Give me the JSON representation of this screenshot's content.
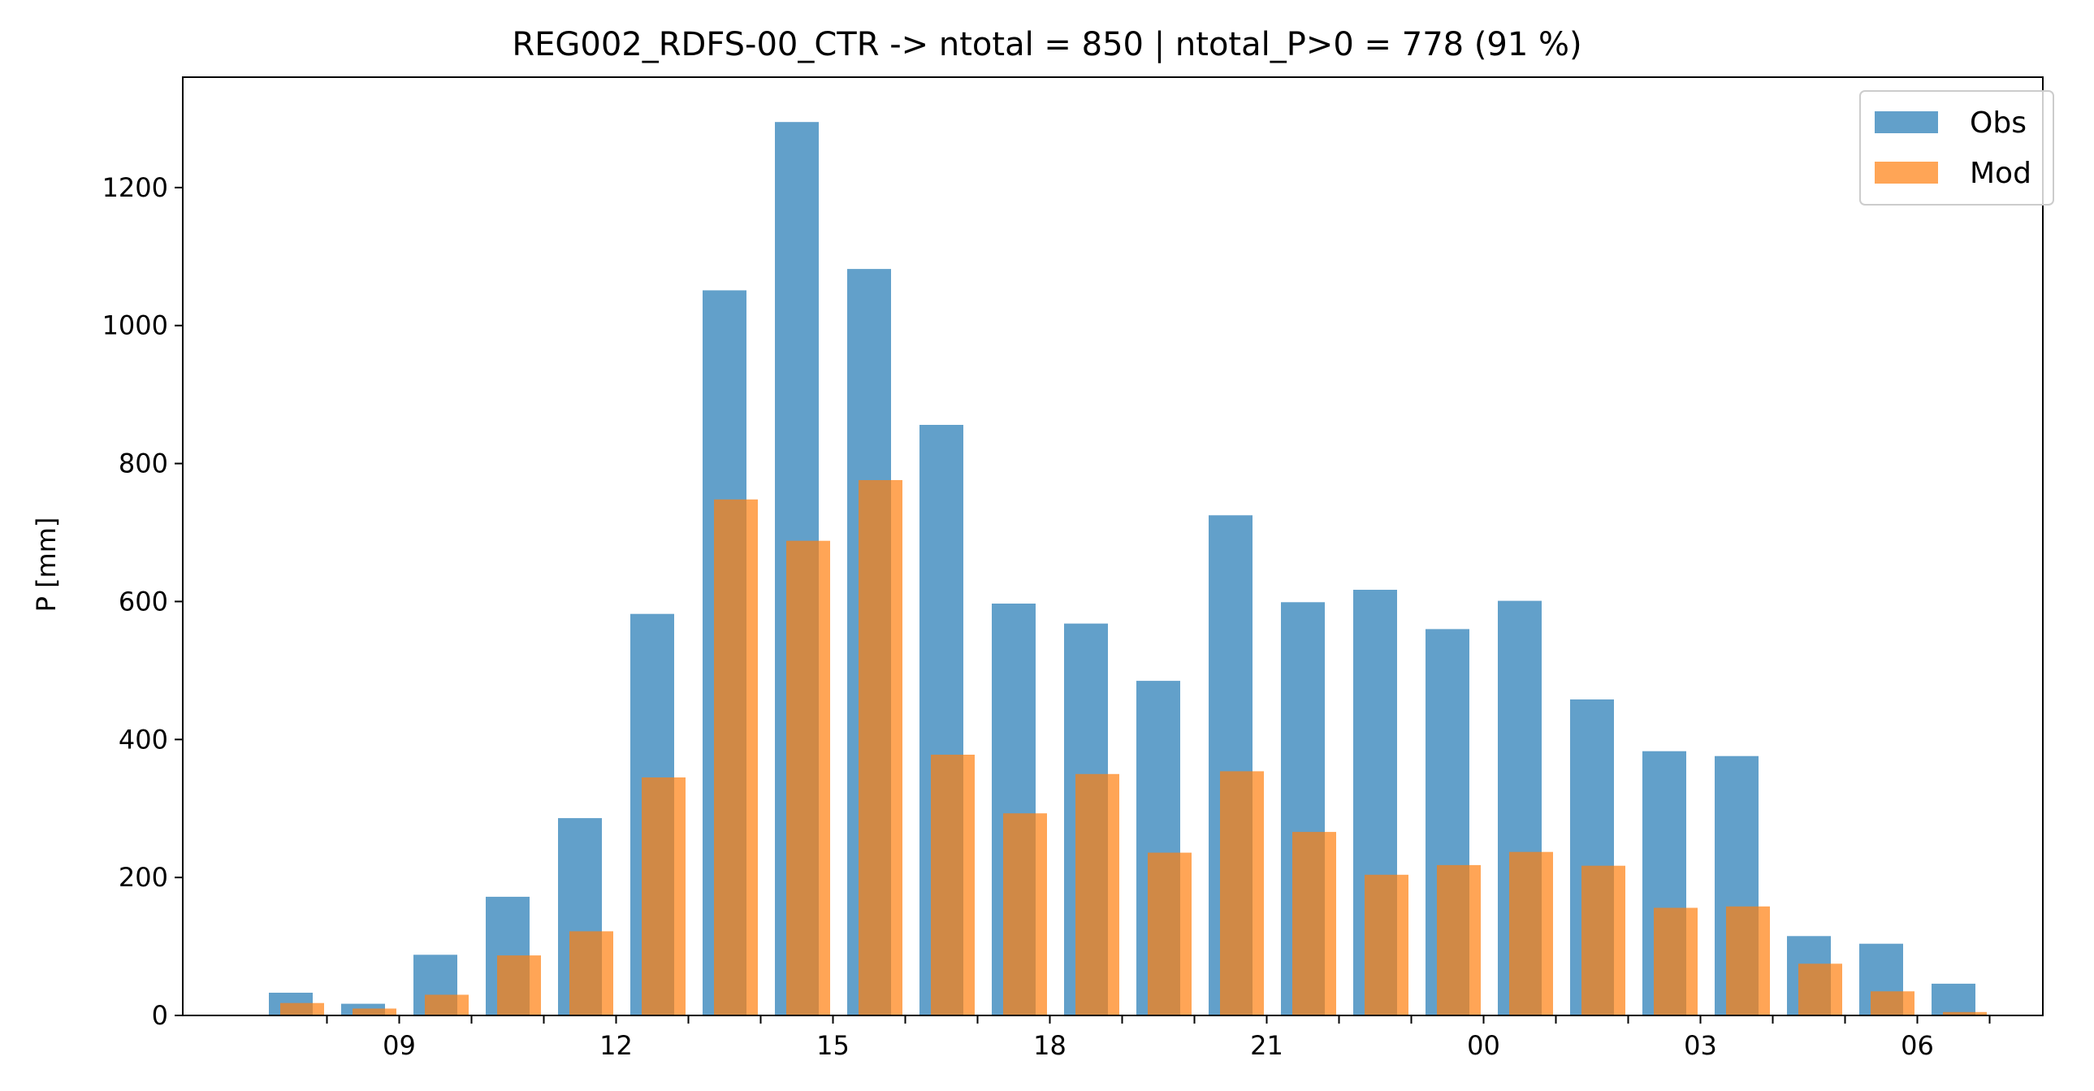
{
  "chart_data": {
    "type": "bar",
    "title": "REG002_RDFS-00_CTR -> ntotal = 850 | ntotal_P>0 = 778 (91 %)",
    "xlabel": "",
    "ylabel": "P [mm]",
    "ylim": [
      0,
      1360
    ],
    "yticks": [
      "0",
      "200",
      "400",
      "600",
      "800",
      "1000",
      "1200"
    ],
    "hours": [
      "08",
      "09",
      "10",
      "11",
      "12",
      "13",
      "14",
      "15",
      "16",
      "17",
      "18",
      "19",
      "20",
      "21",
      "22",
      "23",
      "00",
      "01",
      "02",
      "03",
      "04",
      "05",
      "06",
      "07"
    ],
    "xtick_labels": [
      {
        "hour_index": 1,
        "label": "09"
      },
      {
        "hour_index": 4,
        "label": "12"
      },
      {
        "hour_index": 7,
        "label": "15"
      },
      {
        "hour_index": 10,
        "label": "18"
      },
      {
        "hour_index": 13,
        "label": "21"
      },
      {
        "hour_index": 16,
        "label": "00"
      },
      {
        "hour_index": 19,
        "label": "03"
      },
      {
        "hour_index": 22,
        "label": "06"
      }
    ],
    "series": [
      {
        "name": "Obs",
        "color": "#1f77b4",
        "opacity": 0.7,
        "values": [
          33,
          17,
          88,
          172,
          286,
          582,
          1051,
          1295,
          1082,
          856,
          597,
          568,
          485,
          725,
          599,
          617,
          560,
          601,
          458,
          383,
          376,
          115,
          104,
          46
        ]
      },
      {
        "name": "Mod",
        "color": "#ff7f0e",
        "opacity": 0.7,
        "values": [
          18,
          10,
          30,
          87,
          122,
          345,
          748,
          688,
          776,
          378,
          293,
          350,
          236,
          354,
          266,
          204,
          218,
          237,
          217,
          156,
          158,
          75,
          35,
          5
        ]
      }
    ],
    "legend": "top-right",
    "grid": false
  }
}
